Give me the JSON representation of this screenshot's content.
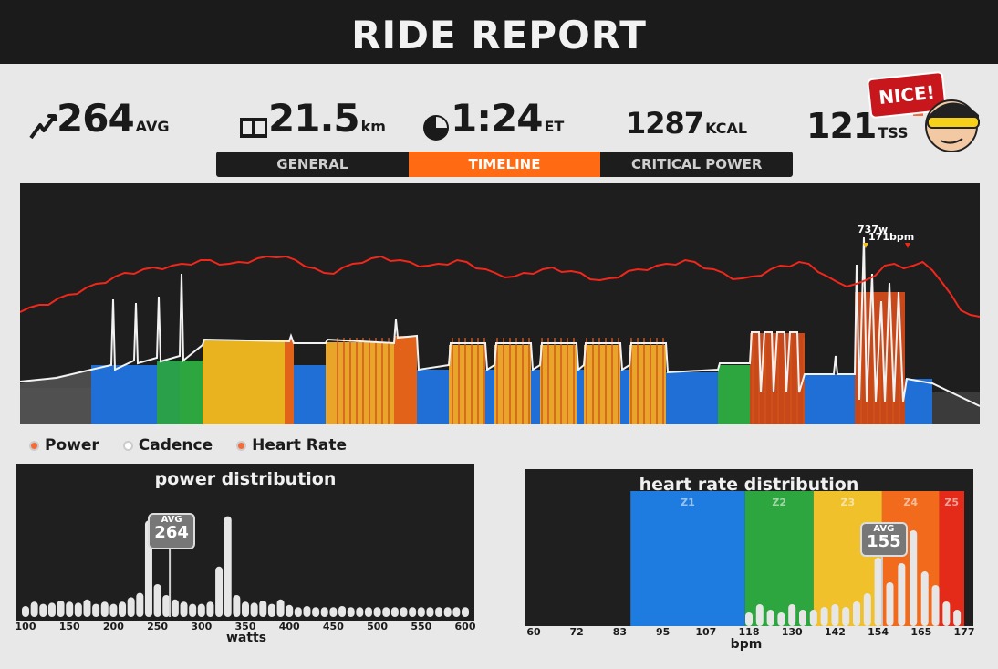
{
  "header": {
    "title": "RIDE REPORT"
  },
  "stats": {
    "power": {
      "value": "264",
      "unit": "AVG"
    },
    "distance": {
      "value": "21.5",
      "unit": "km"
    },
    "time": {
      "value": "1:24",
      "unit": "ET"
    },
    "calories": {
      "value": "1287",
      "unit": "KCAL"
    },
    "tss": {
      "value": "121",
      "unit": "TSS"
    }
  },
  "badge": {
    "text": "NICE!"
  },
  "tabs": [
    {
      "label": "GENERAL",
      "active": false
    },
    {
      "label": "TIMELINE",
      "active": true
    },
    {
      "label": "CRITICAL POWER",
      "active": false
    }
  ],
  "timeline": {
    "peak_power_label": "737w",
    "peak_hr_label": "171bpm"
  },
  "legend": [
    {
      "label": "Power",
      "color": "#f36b3b"
    },
    {
      "label": "Cadence",
      "color": "#e6e6e6"
    },
    {
      "label": "Heart Rate",
      "color": "#f36b3b"
    }
  ],
  "power_distribution": {
    "title": "power distribution",
    "xlabel": "watts",
    "avg_label": "AVG",
    "avg_value": "264",
    "avg": 264,
    "ticks": [
      "100",
      "150",
      "200",
      "250",
      "300",
      "350",
      "400",
      "450",
      "500",
      "550",
      "600"
    ],
    "xmin": 100,
    "xmax": 600,
    "bins": [
      {
        "x": 100,
        "v": 0.1
      },
      {
        "x": 110,
        "v": 0.14
      },
      {
        "x": 120,
        "v": 0.12
      },
      {
        "x": 130,
        "v": 0.13
      },
      {
        "x": 140,
        "v": 0.15
      },
      {
        "x": 150,
        "v": 0.14
      },
      {
        "x": 160,
        "v": 0.13
      },
      {
        "x": 170,
        "v": 0.16
      },
      {
        "x": 180,
        "v": 0.12
      },
      {
        "x": 190,
        "v": 0.14
      },
      {
        "x": 200,
        "v": 0.12
      },
      {
        "x": 210,
        "v": 0.14
      },
      {
        "x": 220,
        "v": 0.18
      },
      {
        "x": 230,
        "v": 0.22
      },
      {
        "x": 240,
        "v": 0.88
      },
      {
        "x": 250,
        "v": 0.3
      },
      {
        "x": 260,
        "v": 0.2
      },
      {
        "x": 270,
        "v": 0.16
      },
      {
        "x": 280,
        "v": 0.14
      },
      {
        "x": 290,
        "v": 0.12
      },
      {
        "x": 300,
        "v": 0.12
      },
      {
        "x": 310,
        "v": 0.14
      },
      {
        "x": 320,
        "v": 0.46
      },
      {
        "x": 330,
        "v": 0.92
      },
      {
        "x": 340,
        "v": 0.2
      },
      {
        "x": 350,
        "v": 0.14
      },
      {
        "x": 360,
        "v": 0.13
      },
      {
        "x": 370,
        "v": 0.15
      },
      {
        "x": 380,
        "v": 0.12
      },
      {
        "x": 390,
        "v": 0.16
      },
      {
        "x": 400,
        "v": 0.11
      },
      {
        "x": 410,
        "v": 0.09
      },
      {
        "x": 420,
        "v": 0.1
      },
      {
        "x": 430,
        "v": 0.09
      },
      {
        "x": 440,
        "v": 0.09
      },
      {
        "x": 450,
        "v": 0.09
      },
      {
        "x": 460,
        "v": 0.1
      },
      {
        "x": 470,
        "v": 0.09
      },
      {
        "x": 480,
        "v": 0.09
      },
      {
        "x": 490,
        "v": 0.09
      },
      {
        "x": 500,
        "v": 0.09
      },
      {
        "x": 510,
        "v": 0.09
      },
      {
        "x": 520,
        "v": 0.09
      },
      {
        "x": 530,
        "v": 0.09
      },
      {
        "x": 540,
        "v": 0.09
      },
      {
        "x": 550,
        "v": 0.09
      },
      {
        "x": 560,
        "v": 0.09
      },
      {
        "x": 570,
        "v": 0.09
      },
      {
        "x": 580,
        "v": 0.09
      },
      {
        "x": 590,
        "v": 0.09
      },
      {
        "x": 600,
        "v": 0.09
      }
    ]
  },
  "hr_distribution": {
    "title": "heart rate distribution",
    "xlabel": "bpm",
    "avg_label": "AVG",
    "avg_value": "155",
    "avg": 155,
    "ticks": [
      "60",
      "72",
      "83",
      "95",
      "107",
      "118",
      "130",
      "142",
      "154",
      "165",
      "177"
    ],
    "zones": [
      {
        "label": "Z1",
        "from": 86,
        "to": 117,
        "color": "#1e7be0"
      },
      {
        "label": "Z2",
        "from": 117,
        "to": 136,
        "color": "#2ea640"
      },
      {
        "label": "Z3",
        "from": 136,
        "to": 155,
        "color": "#f0c12a"
      },
      {
        "label": "Z4",
        "from": 155,
        "to": 170,
        "color": "#f26a1b"
      },
      {
        "label": "Z5",
        "from": 170,
        "to": 177,
        "color": "#e42b1a"
      }
    ],
    "bins": [
      {
        "x": 118,
        "v": 0.1
      },
      {
        "x": 121,
        "v": 0.16
      },
      {
        "x": 124,
        "v": 0.12
      },
      {
        "x": 127,
        "v": 0.1
      },
      {
        "x": 130,
        "v": 0.16
      },
      {
        "x": 133,
        "v": 0.12
      },
      {
        "x": 136,
        "v": 0.12
      },
      {
        "x": 139,
        "v": 0.14
      },
      {
        "x": 142,
        "v": 0.16
      },
      {
        "x": 145,
        "v": 0.14
      },
      {
        "x": 148,
        "v": 0.18
      },
      {
        "x": 151,
        "v": 0.24
      },
      {
        "x": 154,
        "v": 0.5
      },
      {
        "x": 157,
        "v": 0.32
      },
      {
        "x": 160,
        "v": 0.46
      },
      {
        "x": 163,
        "v": 0.7
      },
      {
        "x": 166,
        "v": 0.4
      },
      {
        "x": 169,
        "v": 0.3
      },
      {
        "x": 172,
        "v": 0.18
      },
      {
        "x": 175,
        "v": 0.12
      }
    ]
  }
}
